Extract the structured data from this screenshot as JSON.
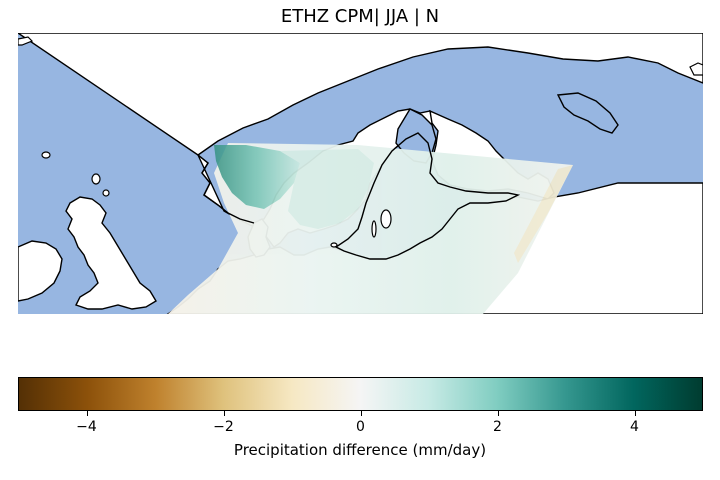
{
  "figure": {
    "title": "ETHZ CPM| JJA | N"
  },
  "map": {
    "ocean_color": "#97b6e1",
    "land_color": "#ffffff",
    "coastline_color": "#000000",
    "visible_regions": [
      "Scandinavia",
      "Baltic Sea",
      "British Isles",
      "Northern Europe"
    ]
  },
  "colorbar": {
    "label": "Precipitation difference (mm/day)",
    "range": [
      -5,
      5
    ],
    "colormap": "BrBG",
    "ticks": [
      {
        "value": -4,
        "label": "−4"
      },
      {
        "value": -2,
        "label": "−2"
      },
      {
        "value": 0,
        "label": "0"
      },
      {
        "value": 2,
        "label": "2"
      },
      {
        "value": 4,
        "label": "4"
      }
    ],
    "stops": [
      "#543005",
      "#8c510a",
      "#bf812d",
      "#dfc27d",
      "#f6e8c3",
      "#f5f5f5",
      "#c7eae5",
      "#80cdc1",
      "#35978f",
      "#01665e",
      "#003c30"
    ]
  }
}
